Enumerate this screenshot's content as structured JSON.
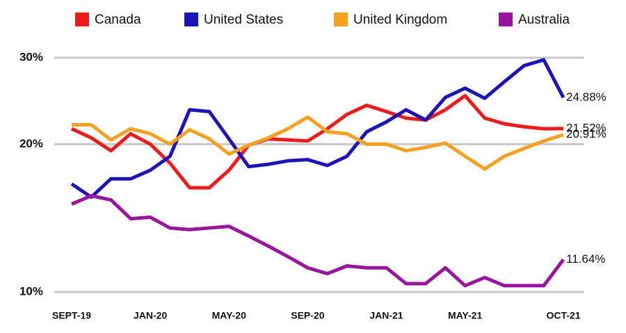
{
  "chart_data": {
    "type": "line",
    "categories": [
      "SEPT-19",
      null,
      null,
      null,
      "JAN-20",
      null,
      null,
      null,
      "MAY-20",
      null,
      null,
      null,
      "SEP-20",
      null,
      null,
      null,
      "JAN-21",
      null,
      null,
      null,
      "MAY-21",
      null,
      null,
      null,
      null,
      "OCT-21"
    ],
    "series": [
      {
        "name": "Canada",
        "color": "#f01a1a",
        "values": [
          21.5,
          20.6,
          19.4,
          21.0,
          20.0,
          18.3,
          16.3,
          16.3,
          17.7,
          19.9,
          20.5,
          20.4,
          20.3,
          21.5,
          23.0,
          24.0,
          23.3,
          22.6,
          22.4,
          23.5,
          25.1,
          22.6,
          22.0,
          21.7,
          21.5,
          21.52
        ],
        "value_labels": [
          null,
          null,
          null,
          null,
          null,
          null,
          null,
          null,
          null,
          null,
          null,
          null,
          null,
          null,
          null,
          null,
          null,
          null,
          null,
          null,
          null,
          null,
          null,
          null,
          null,
          "21.52%"
        ]
      },
      {
        "name": "United States",
        "color": "#1c14b8",
        "values": [
          16.6,
          15.6,
          17.0,
          17.0,
          17.7,
          18.9,
          23.5,
          23.3,
          20.5,
          18.0,
          18.2,
          18.5,
          18.6,
          18.1,
          18.9,
          21.2,
          22.2,
          23.5,
          22.4,
          24.9,
          26.0,
          24.8,
          26.8,
          28.9,
          29.7,
          24.88
        ],
        "value_labels": [
          null,
          null,
          null,
          null,
          null,
          null,
          null,
          null,
          null,
          null,
          null,
          null,
          null,
          null,
          null,
          null,
          null,
          null,
          null,
          null,
          null,
          null,
          null,
          null,
          null,
          "24.88%"
        ]
      },
      {
        "name": "United Kingdom",
        "color": "#f5a01e",
        "values": [
          21.9,
          21.9,
          20.4,
          21.5,
          21.0,
          20.0,
          21.4,
          20.5,
          19.1,
          19.9,
          20.6,
          21.5,
          22.7,
          21.2,
          21.0,
          20.0,
          20.0,
          19.4,
          19.7,
          20.1,
          18.9,
          17.8,
          18.9,
          19.6,
          20.3,
          20.91
        ],
        "value_labels": [
          null,
          null,
          null,
          null,
          null,
          null,
          null,
          null,
          null,
          null,
          null,
          null,
          null,
          null,
          null,
          null,
          null,
          null,
          null,
          null,
          null,
          null,
          null,
          null,
          null,
          "20.91%"
        ]
      },
      {
        "name": "Australia",
        "color": "#9a159e",
        "values": [
          15.1,
          15.7,
          15.4,
          14.1,
          14.2,
          13.5,
          13.4,
          13.5,
          13.6,
          13.0,
          12.4,
          11.8,
          11.2,
          10.9,
          11.3,
          11.2,
          11.2,
          10.4,
          10.4,
          11.2,
          10.3,
          10.7,
          10.3,
          10.3,
          10.3,
          11.64
        ],
        "value_labels": [
          null,
          null,
          null,
          null,
          null,
          null,
          null,
          null,
          null,
          null,
          null,
          null,
          null,
          null,
          null,
          null,
          null,
          null,
          null,
          null,
          null,
          null,
          null,
          null,
          null,
          "11.64%"
        ]
      }
    ],
    "ylim": [
      10,
      30
    ],
    "log_scale": true,
    "yticks": [
      {
        "value": 10,
        "label": "10%"
      },
      {
        "value": 20,
        "label": "20%"
      },
      {
        "value": 30,
        "label": "30%"
      }
    ],
    "grid": true
  }
}
